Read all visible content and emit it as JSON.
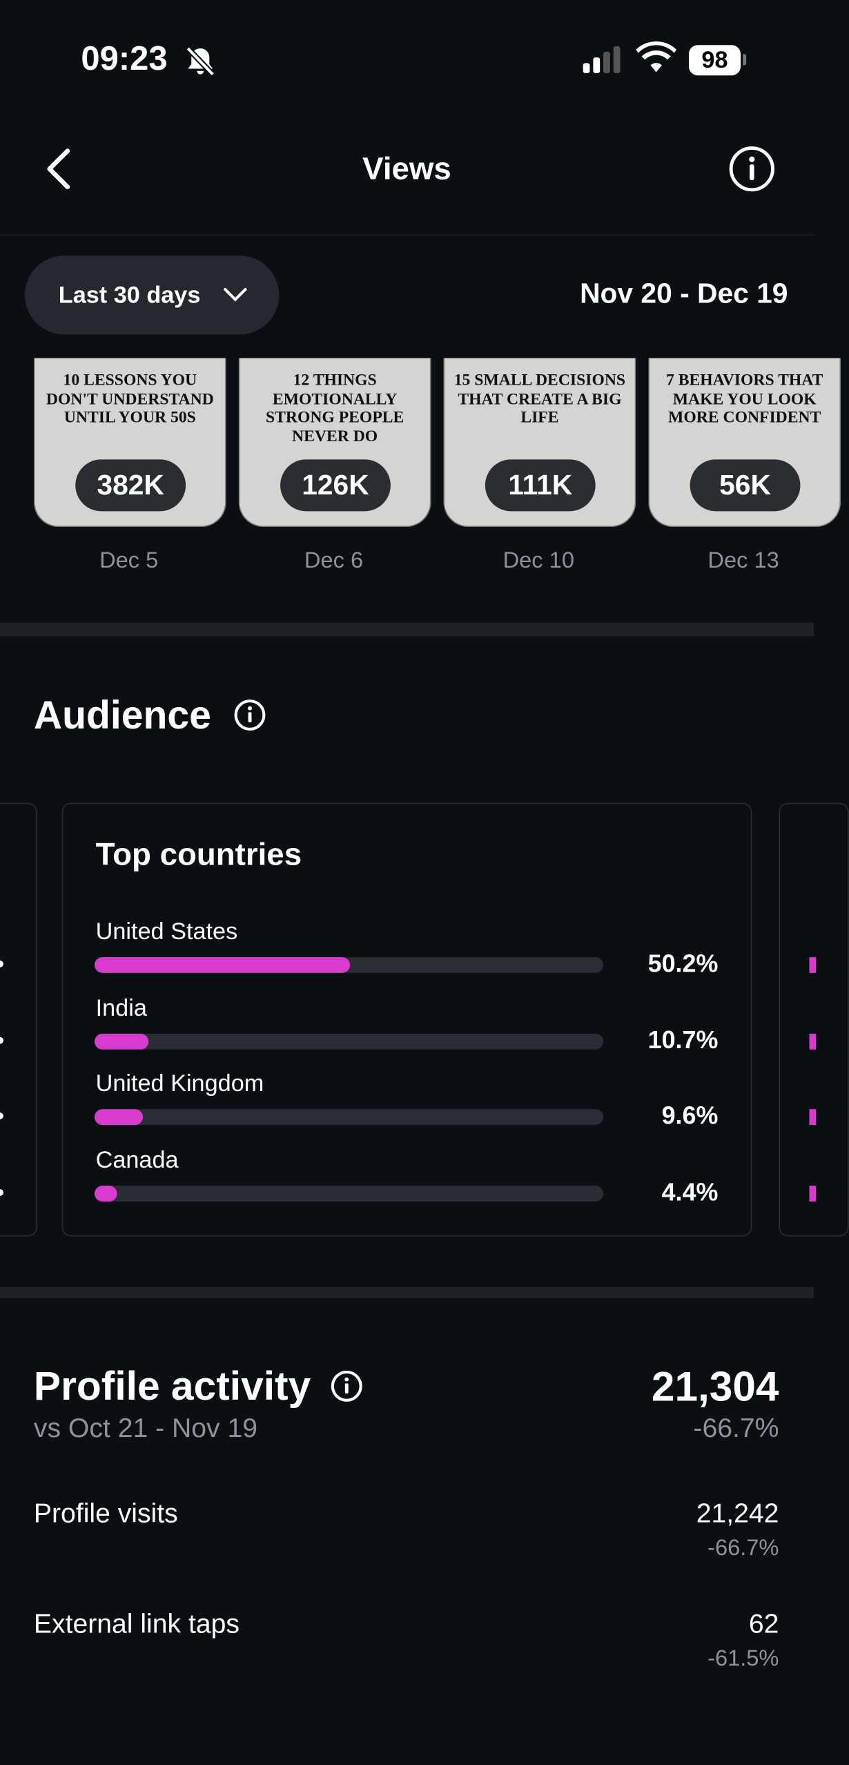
{
  "status": {
    "time": "09:23",
    "battery": "98"
  },
  "header": {
    "title": "Views"
  },
  "filter": {
    "period": "Last 30 days",
    "range": "Nov 20 - Dec 19"
  },
  "posts": [
    {
      "text": "10 LESSONS YOU DON'T UNDERSTAND UNTIL YOUR 50S",
      "views": "382K",
      "date": "Dec 5"
    },
    {
      "text": "12 THINGS EMOTIONALLY STRONG PEOPLE NEVER DO",
      "views": "126K",
      "date": "Dec 6"
    },
    {
      "text": "15 SMALL DECISIONS THAT CREATE A BIG LIFE",
      "views": "111K",
      "date": "Dec 10"
    },
    {
      "text": "7 BEHAVIORS THAT MAKE YOU LOOK MORE CONFIDENT",
      "views": "56K",
      "date": "Dec 13"
    }
  ],
  "audience": {
    "title": "Audience",
    "card_title": "Top countries",
    "countries": [
      {
        "name": "United States",
        "value": 50.2,
        "value_label": "50.2%"
      },
      {
        "name": "India",
        "value": 10.7,
        "value_label": "10.7%"
      },
      {
        "name": "United Kingdom",
        "value": 9.6,
        "value_label": "9.6%"
      },
      {
        "name": "Canada",
        "value": 4.4,
        "value_label": "4.4%"
      }
    ]
  },
  "profile": {
    "title": "Profile activity",
    "compare": "vs Oct 21 - Nov 19",
    "total": "21,304",
    "change": "-66.7%",
    "rows": [
      {
        "label": "Profile visits",
        "value": "21,242",
        "change": "-66.7%"
      },
      {
        "label": "External link taps",
        "value": "62",
        "change": "-61.5%"
      }
    ]
  }
}
